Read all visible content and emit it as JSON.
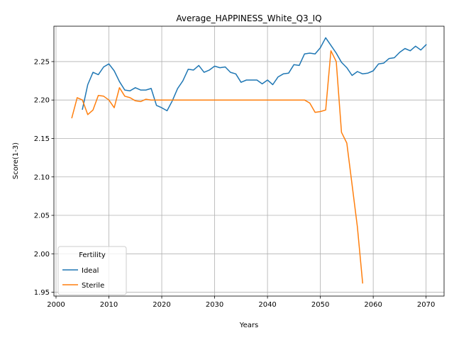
{
  "chart_data": {
    "type": "line",
    "title": "Average_HAPPINESS_White_Q3_IQ",
    "xlabel": "Years",
    "ylabel": "Score(1-3)",
    "xlim": [
      1999.6,
      2073.4
    ],
    "ylim": [
      1.945,
      2.296
    ],
    "xticks": [
      2000,
      2010,
      2020,
      2030,
      2040,
      2050,
      2060,
      2070
    ],
    "yticks": [
      1.95,
      2.0,
      2.05,
      2.1,
      2.15,
      2.2,
      2.25
    ],
    "ytick_labels": [
      "1.95",
      "2.00",
      "2.05",
      "2.10",
      "2.15",
      "2.20",
      "2.25"
    ],
    "grid": true,
    "legend": {
      "title": "Fertility",
      "placement": "lower-left"
    },
    "series": [
      {
        "name": "Ideal",
        "color": "#1f77b4",
        "x": [
          2005,
          2006,
          2007,
          2008,
          2009,
          2010,
          2011,
          2012,
          2013,
          2014,
          2015,
          2016,
          2017,
          2018,
          2019,
          2020,
          2021,
          2022,
          2023,
          2024,
          2025,
          2026,
          2027,
          2028,
          2029,
          2030,
          2031,
          2032,
          2033,
          2034,
          2035,
          2036,
          2037,
          2038,
          2039,
          2040,
          2041,
          2042,
          2043,
          2044,
          2045,
          2046,
          2047,
          2048,
          2049,
          2050,
          2051,
          2052,
          2053,
          2054,
          2055,
          2056,
          2057,
          2058,
          2059,
          2060,
          2061,
          2062,
          2063,
          2064,
          2065,
          2066,
          2067,
          2068,
          2069,
          2070
        ],
        "y": [
          2.188,
          2.22,
          2.236,
          2.233,
          2.243,
          2.247,
          2.238,
          2.224,
          2.213,
          2.212,
          2.216,
          2.213,
          2.213,
          2.215,
          2.193,
          2.19,
          2.186,
          2.199,
          2.215,
          2.225,
          2.24,
          2.239,
          2.245,
          2.236,
          2.239,
          2.244,
          2.242,
          2.243,
          2.236,
          2.234,
          2.223,
          2.226,
          2.226,
          2.226,
          2.221,
          2.226,
          2.22,
          2.23,
          2.234,
          2.235,
          2.246,
          2.245,
          2.26,
          2.261,
          2.26,
          2.268,
          2.281,
          2.271,
          2.261,
          2.249,
          2.242,
          2.232,
          2.237,
          2.234,
          2.235,
          2.238,
          2.247,
          2.248,
          2.254,
          2.255,
          2.262,
          2.267,
          2.264,
          2.27,
          2.265,
          2.272
        ]
      },
      {
        "name": "Sterile",
        "color": "#ff7f0e",
        "x": [
          2003,
          2004,
          2005,
          2006,
          2007,
          2008,
          2009,
          2010,
          2011,
          2012,
          2013,
          2014,
          2015,
          2016,
          2017,
          2018,
          2019,
          2020,
          2021,
          2022,
          2023,
          2024,
          2025,
          2026,
          2027,
          2028,
          2029,
          2030,
          2031,
          2032,
          2033,
          2034,
          2035,
          2036,
          2037,
          2038,
          2039,
          2040,
          2041,
          2042,
          2043,
          2044,
          2045,
          2046,
          2047,
          2048,
          2049,
          2050,
          2051,
          2052,
          2053,
          2054,
          2055,
          2056,
          2057,
          2058
        ],
        "y": [
          2.177,
          2.203,
          2.2,
          2.181,
          2.187,
          2.206,
          2.205,
          2.2,
          2.19,
          2.216,
          2.205,
          2.203,
          2.199,
          2.198,
          2.201,
          2.2,
          2.2,
          2.2,
          2.2,
          2.2,
          2.2,
          2.2,
          2.2,
          2.2,
          2.2,
          2.2,
          2.2,
          2.2,
          2.2,
          2.2,
          2.2,
          2.2,
          2.2,
          2.2,
          2.2,
          2.2,
          2.2,
          2.2,
          2.2,
          2.2,
          2.2,
          2.2,
          2.2,
          2.2,
          2.2,
          2.196,
          2.184,
          2.185,
          2.187,
          2.264,
          2.25,
          2.158,
          2.144,
          2.09,
          2.035,
          1.962
        ]
      }
    ]
  }
}
